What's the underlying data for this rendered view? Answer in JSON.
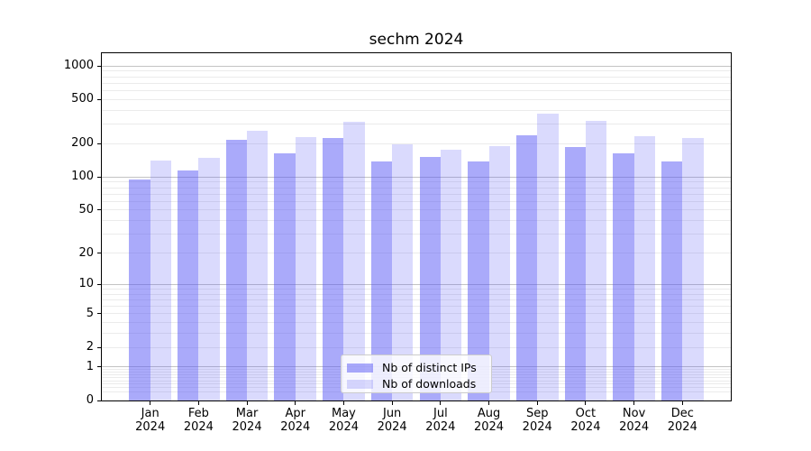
{
  "title": "sechm 2024",
  "chart_data": {
    "type": "bar",
    "title": "sechm 2024",
    "categories": [
      "Jan 2024",
      "Feb 2024",
      "Mar 2024",
      "Apr 2024",
      "May 2024",
      "Jun 2024",
      "Jul 2024",
      "Aug 2024",
      "Sep 2024",
      "Oct 2024",
      "Nov 2024",
      "Dec 2024"
    ],
    "series": [
      {
        "name": "Nb of distinct IPs",
        "color": "#5555f5",
        "alpha": 0.5,
        "values": [
          95,
          114,
          217,
          164,
          225,
          139,
          151,
          137,
          240,
          188,
          164,
          138
        ]
      },
      {
        "name": "Nb of downloads",
        "color": "#5555f5",
        "alpha": 0.22,
        "values": [
          140,
          150,
          261,
          229,
          313,
          199,
          176,
          191,
          374,
          318,
          234,
          223
        ]
      }
    ],
    "yscale": "log1p",
    "yticks": [
      0,
      1,
      2,
      5,
      10,
      20,
      50,
      100,
      200,
      500,
      1000
    ],
    "ylim": [
      0,
      1300
    ],
    "xlabel": "",
    "ylabel": "",
    "grid": "horizontal",
    "legend_position": "lower center"
  },
  "legend": {
    "items": [
      "Nb of distinct IPs",
      "Nb of downloads"
    ]
  },
  "colors": {
    "bar_base": "#5555f5",
    "grid_major": "#c3c3c3",
    "grid_minor": "#ebebeb",
    "spine": "#000000",
    "background": "#ffffff",
    "legend_border": "#cccccc"
  }
}
